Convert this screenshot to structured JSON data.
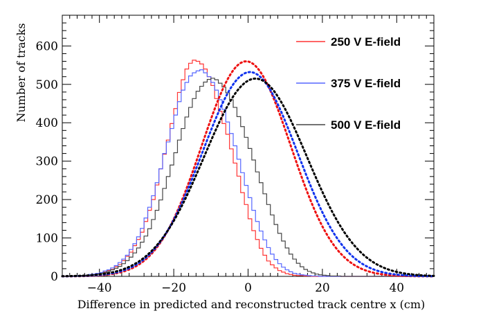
{
  "chart_data": {
    "type": "histogram",
    "title": "",
    "xlabel": "Difference in predicted and reconstructed track centre x (cm)",
    "ylabel": "Number of tracks",
    "xlim": [
      -50,
      50
    ],
    "ylim": [
      0,
      680
    ],
    "xticks": [
      -40,
      -20,
      0,
      20,
      40
    ],
    "xtick_labels": [
      "−40",
      "−20",
      "0",
      "20",
      "40"
    ],
    "yticks": [
      0,
      100,
      200,
      300,
      400,
      500,
      600
    ],
    "ytick_labels": [
      "0",
      "100",
      "200",
      "300",
      "400",
      "500",
      "600"
    ],
    "bin_width": 1,
    "bin_start": -50,
    "series": [
      {
        "name": "250 V E-field",
        "color": "#ff3333",
        "fit_color": "#ee1111",
        "fit": {
          "mean": -0.5,
          "sigma": 12.0,
          "amplitude": 560
        },
        "values": [
          0,
          0,
          0,
          1,
          1,
          2,
          3,
          3,
          5,
          7,
          9,
          11,
          15,
          18,
          25,
          31,
          41,
          52,
          63,
          80,
          96,
          115,
          143,
          172,
          200,
          238,
          280,
          318,
          355,
          398,
          437,
          479,
          512,
          540,
          555,
          563,
          560,
          553,
          540,
          520,
          497,
          463,
          430,
          398,
          370,
          332,
          295,
          261,
          218,
          187,
          150,
          119,
          96,
          73,
          55,
          40,
          30,
          22,
          15,
          11,
          7,
          5,
          3,
          2,
          2,
          1,
          1,
          0,
          0,
          0,
          0,
          0,
          0,
          0,
          0,
          0,
          0,
          0,
          0,
          0,
          0,
          0,
          0,
          0,
          0,
          0,
          0,
          0,
          0,
          0,
          0,
          0,
          0,
          0,
          0,
          0,
          0,
          0,
          0,
          0
        ]
      },
      {
        "name": "375 V E-field",
        "color": "#5566ff",
        "fit_color": "#1133ee",
        "fit": {
          "mean": 0.5,
          "sigma": 12.8,
          "amplitude": 532
        },
        "values": [
          0,
          0,
          0,
          1,
          2,
          2,
          3,
          5,
          6,
          8,
          10,
          14,
          17,
          22,
          28,
          36,
          45,
          55,
          70,
          85,
          103,
          125,
          152,
          180,
          210,
          244,
          280,
          320,
          350,
          385,
          420,
          455,
          485,
          505,
          522,
          530,
          535,
          538,
          530,
          520,
          505,
          485,
          460,
          435,
          402,
          372,
          340,
          305,
          270,
          237,
          205,
          172,
          143,
          118,
          95,
          75,
          58,
          44,
          33,
          24,
          17,
          12,
          8,
          6,
          4,
          3,
          2,
          1,
          1,
          0,
          0,
          0,
          0,
          0,
          0,
          0,
          0,
          0,
          0,
          0,
          0,
          0,
          0,
          0,
          0,
          0,
          0,
          0,
          0,
          0,
          0,
          0,
          0,
          0,
          0,
          0,
          0,
          0,
          0,
          0
        ]
      },
      {
        "name": "500 V E-field",
        "color": "#444444",
        "fit_color": "#000000",
        "fit": {
          "mean": 2.0,
          "sigma": 13.8,
          "amplitude": 515
        },
        "values": [
          0,
          0,
          1,
          1,
          1,
          2,
          2,
          3,
          4,
          6,
          8,
          10,
          13,
          17,
          21,
          26,
          33,
          41,
          50,
          61,
          74,
          89,
          105,
          124,
          148,
          172,
          199,
          229,
          260,
          290,
          322,
          355,
          385,
          415,
          440,
          463,
          482,
          495,
          506,
          513,
          516,
          512,
          503,
          493,
          478,
          460,
          440,
          416,
          390,
          362,
          333,
          303,
          272,
          244,
          215,
          187,
          160,
          135,
          112,
          92,
          74,
          58,
          45,
          34,
          25,
          18,
          13,
          9,
          6,
          4,
          3,
          2,
          1,
          1,
          1,
          0,
          0,
          0,
          0,
          0,
          0,
          0,
          0,
          0,
          0,
          0,
          0,
          0,
          0,
          0,
          0,
          0,
          0,
          0,
          0,
          0,
          0,
          0,
          0,
          0
        ]
      }
    ],
    "legend_position": "top-right"
  }
}
